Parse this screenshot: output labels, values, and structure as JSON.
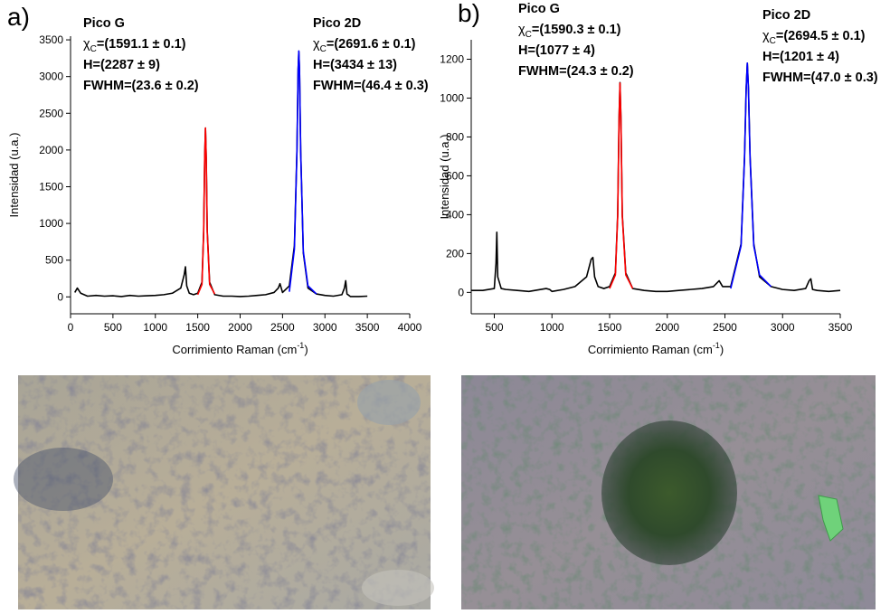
{
  "chart_data": [
    {
      "type": "line",
      "panel_label": "a)",
      "x_label": "Corrimiento Raman (cm",
      "x_label_sup": "-1",
      "x_label_end": ")",
      "y_label": "Intensidad (u.a.)",
      "xlim": [
        0,
        4000
      ],
      "xticks": [
        0,
        500,
        1000,
        1500,
        2000,
        2500,
        3000,
        3500,
        4000
      ],
      "ylim": [
        -230,
        3550
      ],
      "yticks": [
        0,
        500,
        1000,
        1500,
        2000,
        2500,
        3000,
        3500
      ],
      "series": [
        {
          "color": "#000000",
          "x": [
            50,
            80,
            120,
            200,
            300,
            400,
            500,
            600,
            700,
            800,
            900,
            1000,
            1100,
            1200,
            1300,
            1340,
            1355,
            1370,
            1400,
            1450,
            1500,
            1550,
            1570,
            1582,
            1591,
            1600,
            1612,
            1640,
            1700,
            1800,
            1900,
            2000,
            2100,
            2200,
            2300,
            2400,
            2450,
            2470,
            2500,
            2580,
            2640,
            2670,
            2684,
            2692,
            2700,
            2714,
            2745,
            2800,
            2900,
            3000,
            3100,
            3200,
            3230,
            3245,
            3260,
            3300,
            3400,
            3500
          ],
          "values": [
            60,
            120,
            50,
            10,
            20,
            10,
            15,
            5,
            20,
            10,
            15,
            20,
            30,
            50,
            120,
            300,
            410,
            150,
            50,
            30,
            50,
            200,
            900,
            1900,
            2300,
            1900,
            900,
            200,
            30,
            10,
            10,
            5,
            10,
            20,
            30,
            60,
            120,
            180,
            60,
            150,
            700,
            2000,
            3100,
            3340,
            3100,
            2000,
            600,
            120,
            40,
            20,
            10,
            30,
            120,
            220,
            40,
            5,
            5,
            10
          ]
        },
        {
          "color": "#ff0000",
          "x": [
            1500,
            1550,
            1570,
            1582,
            1591,
            1600,
            1612,
            1640,
            1700
          ],
          "values": [
            30,
            170,
            880,
            1880,
            2300,
            1880,
            880,
            170,
            40
          ]
        },
        {
          "color": "#0000ff",
          "x": [
            2580,
            2640,
            2670,
            2684,
            2692,
            2700,
            2714,
            2745,
            2800,
            2900
          ],
          "values": [
            70,
            650,
            1980,
            3100,
            3350,
            3100,
            1980,
            620,
            150,
            40
          ]
        }
      ],
      "annotations": [
        {
          "title": "Pico G",
          "chi": "χ",
          "chi_sub": "C",
          "center": "=(1591.1 ± 0.1)",
          "height": "H=(2287 ± 9)",
          "fwhm": "FWHM=(23.6 ± 0.2)"
        },
        {
          "title": "Pico 2D",
          "chi": "χ",
          "chi_sub": "C",
          "center": "=(2691.6 ± 0.1)",
          "height": "H=(3434 ± 13)",
          "fwhm": "FWHM=(46.4 ± 0.3)"
        }
      ]
    },
    {
      "type": "line",
      "panel_label": "b)",
      "x_label": "Corrimiento Raman (cm",
      "x_label_sup": "-1",
      "x_label_end": ")",
      "y_label": "Intensidad (u.a.)",
      "xlim": [
        300,
        3500
      ],
      "xticks": [
        500,
        1000,
        1500,
        2000,
        2500,
        3000,
        3500
      ],
      "ylim": [
        -110,
        1300
      ],
      "yticks": [
        0,
        200,
        400,
        600,
        800,
        1000,
        1200
      ],
      "series": [
        {
          "color": "#000000",
          "x": [
            300,
            400,
            500,
            515,
            522,
            530,
            560,
            600,
            700,
            800,
            950,
            980,
            1000,
            1100,
            1200,
            1300,
            1340,
            1355,
            1370,
            1400,
            1450,
            1500,
            1550,
            1570,
            1582,
            1590,
            1598,
            1610,
            1640,
            1700,
            1800,
            1900,
            2000,
            2100,
            2200,
            2300,
            2400,
            2450,
            2480,
            2550,
            2640,
            2670,
            2684,
            2694,
            2704,
            2718,
            2750,
            2800,
            2900,
            3000,
            3100,
            3200,
            3230,
            3245,
            3260,
            3300,
            3400,
            3500
          ],
          "values": [
            10,
            10,
            20,
            150,
            310,
            80,
            20,
            15,
            10,
            5,
            20,
            15,
            5,
            15,
            30,
            80,
            170,
            180,
            80,
            30,
            20,
            30,
            100,
            400,
            900,
            1080,
            900,
            400,
            100,
            20,
            10,
            5,
            5,
            10,
            15,
            20,
            30,
            60,
            30,
            30,
            250,
            700,
            1050,
            1180,
            1050,
            700,
            250,
            80,
            30,
            15,
            10,
            20,
            60,
            70,
            15,
            10,
            5,
            10
          ]
        },
        {
          "color": "#ff0000",
          "x": [
            1500,
            1550,
            1570,
            1582,
            1590,
            1598,
            1610,
            1640,
            1700
          ],
          "values": [
            20,
            90,
            390,
            890,
            1077,
            890,
            390,
            90,
            20
          ]
        },
        {
          "color": "#0000ff",
          "x": [
            2550,
            2640,
            2670,
            2684,
            2694,
            2704,
            2718,
            2750,
            2800,
            2900
          ],
          "values": [
            20,
            240,
            690,
            1040,
            1180,
            1040,
            690,
            240,
            90,
            30
          ]
        }
      ],
      "annotations": [
        {
          "title": "Pico G",
          "chi": "χ",
          "chi_sub": "C",
          "center": "=(1590.3 ± 0.1)",
          "height": "H=(1077 ± 4)",
          "fwhm": "FWHM=(24.3 ± 0.2)"
        },
        {
          "title": "Pico 2D",
          "chi": "χ",
          "chi_sub": "C",
          "center": "=(2694.5 ± 0.1)",
          "height": "H=(1201 ± 4)",
          "fwhm": "FWHM=(47.0 ± 0.3)"
        }
      ]
    }
  ]
}
